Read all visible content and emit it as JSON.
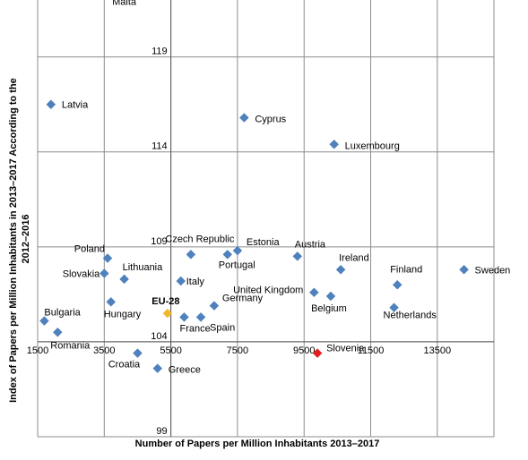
{
  "chart_data": {
    "type": "scatter",
    "title": "",
    "xlabel": "Number of Papers per Million Inhabitants 2013–2017",
    "ylabel_lines": [
      "Index of Papers per Million Inhabitants in 2013–2017 According to the",
      "2012–2016"
    ],
    "xlim": [
      1500,
      15200
    ],
    "ylim": [
      99,
      122
    ],
    "x_ticks": [
      1500,
      3500,
      5500,
      7500,
      9500,
      11500,
      13500
    ],
    "y_ticks": [
      99,
      104,
      109,
      114,
      119
    ],
    "x_tick_labels": [
      "1500",
      "3500",
      "5500",
      "7500",
      "9500",
      "11500",
      "13500"
    ],
    "y_tick_labels": [
      "99",
      "104",
      "109",
      "114",
      "119"
    ],
    "grid": true,
    "colors": {
      "default": "#4f81bd",
      "highlight_eu": "#f1b82d",
      "highlight_si": "#e41e1e"
    },
    "points": [
      {
        "name": "Malta",
        "x": 4100,
        "y": 122.5,
        "color": "default"
      },
      {
        "name": "Latvia",
        "x": 1900,
        "y": 116.5,
        "color": "default"
      },
      {
        "name": "Cyprus",
        "x": 7700,
        "y": 115.8,
        "color": "default"
      },
      {
        "name": "Luxembourg",
        "x": 10400,
        "y": 114.4,
        "color": "default"
      },
      {
        "name": "Czech Republic",
        "x": 6100,
        "y": 108.6,
        "color": "default"
      },
      {
        "name": "Estonia",
        "x": 7500,
        "y": 108.8,
        "color": "default"
      },
      {
        "name": "Portugal",
        "x": 7200,
        "y": 108.6,
        "color": "default"
      },
      {
        "name": "Poland",
        "x": 3600,
        "y": 108.4,
        "color": "default"
      },
      {
        "name": "Austria",
        "x": 9300,
        "y": 108.5,
        "color": "default"
      },
      {
        "name": "Ireland",
        "x": 10600,
        "y": 107.8,
        "color": "default"
      },
      {
        "name": "Sweden",
        "x": 14300,
        "y": 107.8,
        "color": "default"
      },
      {
        "name": "Slovakia",
        "x": 3500,
        "y": 107.6,
        "color": "default"
      },
      {
        "name": "Lithuania",
        "x": 4100,
        "y": 107.3,
        "color": "default"
      },
      {
        "name": "Italy",
        "x": 5800,
        "y": 107.2,
        "color": "default"
      },
      {
        "name": "Finland",
        "x": 12300,
        "y": 107.0,
        "color": "default"
      },
      {
        "name": "United Kingdom",
        "x": 9800,
        "y": 106.6,
        "color": "default"
      },
      {
        "name": "Belgium",
        "x": 10300,
        "y": 106.4,
        "color": "default"
      },
      {
        "name": "Germany",
        "x": 6800,
        "y": 105.9,
        "color": "default"
      },
      {
        "name": "Hungary",
        "x": 3700,
        "y": 106.1,
        "color": "default"
      },
      {
        "name": "Netherlands",
        "x": 12200,
        "y": 105.8,
        "color": "default"
      },
      {
        "name": "EU-28",
        "x": 5400,
        "y": 105.5,
        "color": "highlight_eu"
      },
      {
        "name": "France",
        "x": 5900,
        "y": 105.3,
        "color": "default"
      },
      {
        "name": "Spain",
        "x": 6400,
        "y": 105.3,
        "color": "default"
      },
      {
        "name": "Bulgaria",
        "x": 1700,
        "y": 105.1,
        "color": "default"
      },
      {
        "name": "Romania",
        "x": 2100,
        "y": 104.5,
        "color": "default"
      },
      {
        "name": "Croatia",
        "x": 4500,
        "y": 103.4,
        "color": "default"
      },
      {
        "name": "Slovenia",
        "x": 9900,
        "y": 103.4,
        "color": "highlight_si"
      },
      {
        "name": "Greece",
        "x": 5100,
        "y": 102.6,
        "color": "default"
      }
    ]
  }
}
